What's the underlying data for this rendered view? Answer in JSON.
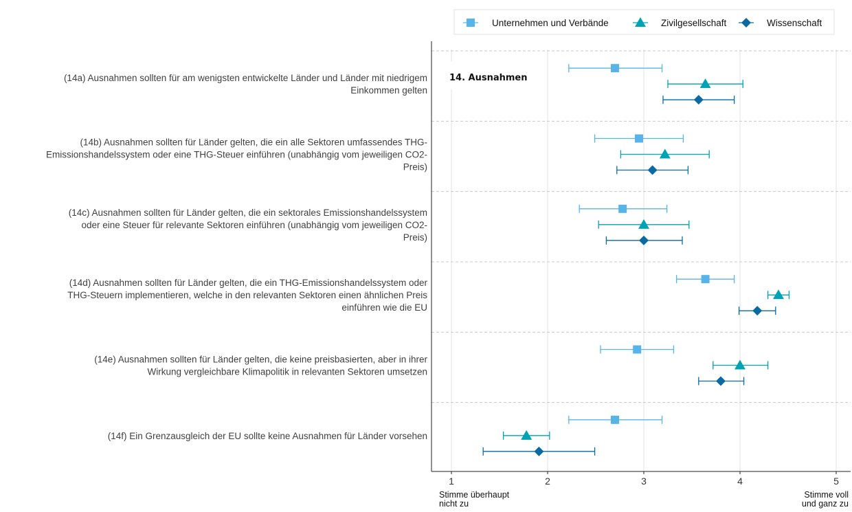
{
  "chart_data": {
    "type": "scatter",
    "title": "14. Ausnahmen",
    "xlim": [
      0.8,
      5.15
    ],
    "x_ticks": [
      "1",
      "2",
      "3",
      "4",
      "5"
    ],
    "x_end_labels": {
      "left": [
        "Stimme überhaupt",
        "nicht zu"
      ],
      "right": [
        "Stimme voll",
        "und ganz zu"
      ]
    },
    "grid": "vertical",
    "legend_position": "top-right",
    "categories": [
      {
        "label": [
          "(14a) Ausnahmen sollten für am wenigsten entwickelte Länder und Länder mit niedrigem",
          "Einkommen gelten"
        ]
      },
      {
        "label": [
          "(14b) Ausnahmen sollten für Länder gelten, die ein alle Sektoren umfassendes THG-",
          "Emissionshandelssystem oder eine THG-Steuer einführen (unabhängig vom jeweiligen CO2-",
          "Preis)"
        ]
      },
      {
        "label": [
          "(14c) Ausnahmen sollten für Länder gelten, die ein sektorales Emissionshandelssystem",
          "oder eine Steuer für relevante Sektoren einführen (unabhängig vom jeweiligen CO2-",
          "Preis)"
        ]
      },
      {
        "label": [
          "(14d) Ausnahmen sollten für Länder gelten, die ein THG-Emissionshandelssystem oder",
          "THG-Steuern implementieren, welche in den relevanten Sektoren einen ähnlichen Preis",
          "einführen wie die EU"
        ]
      },
      {
        "label": [
          "(14e) Ausnahmen sollten für Länder gelten, die keine preisbasierten, aber in ihrer",
          "Wirkung vergleichbare Klimapolitik in relevanten Sektoren umsetzen"
        ]
      },
      {
        "label": [
          "(14f) Ein Grenzausgleich der EU sollte keine Ausnahmen für Länder vorsehen"
        ]
      }
    ],
    "series": [
      {
        "name": "Unternehmen und Verbände",
        "marker": "square",
        "color": "#56b4e9",
        "mean": [
          2.7,
          2.95,
          2.78,
          3.64,
          2.93,
          2.7
        ],
        "ci_low": [
          2.22,
          2.49,
          2.33,
          3.34,
          2.55,
          2.22
        ],
        "ci_high": [
          3.19,
          3.41,
          3.24,
          3.94,
          3.31,
          3.19
        ]
      },
      {
        "name": "Zivilgesellschaft",
        "marker": "triangle",
        "color": "#00a3b4",
        "mean": [
          3.64,
          3.22,
          3.0,
          4.4,
          4.0,
          1.78
        ],
        "ci_low": [
          3.25,
          2.76,
          2.53,
          4.29,
          3.72,
          1.54
        ],
        "ci_high": [
          4.03,
          3.68,
          3.47,
          4.51,
          4.29,
          2.02
        ]
      },
      {
        "name": "Wissenschaft",
        "marker": "diamond",
        "color": "#0a6aa1",
        "mean": [
          3.57,
          3.09,
          3.0,
          4.18,
          3.8,
          1.91
        ],
        "ci_low": [
          3.2,
          2.72,
          2.61,
          3.99,
          3.57,
          1.33
        ],
        "ci_high": [
          3.94,
          3.46,
          3.4,
          4.37,
          4.04,
          2.49
        ]
      }
    ]
  }
}
